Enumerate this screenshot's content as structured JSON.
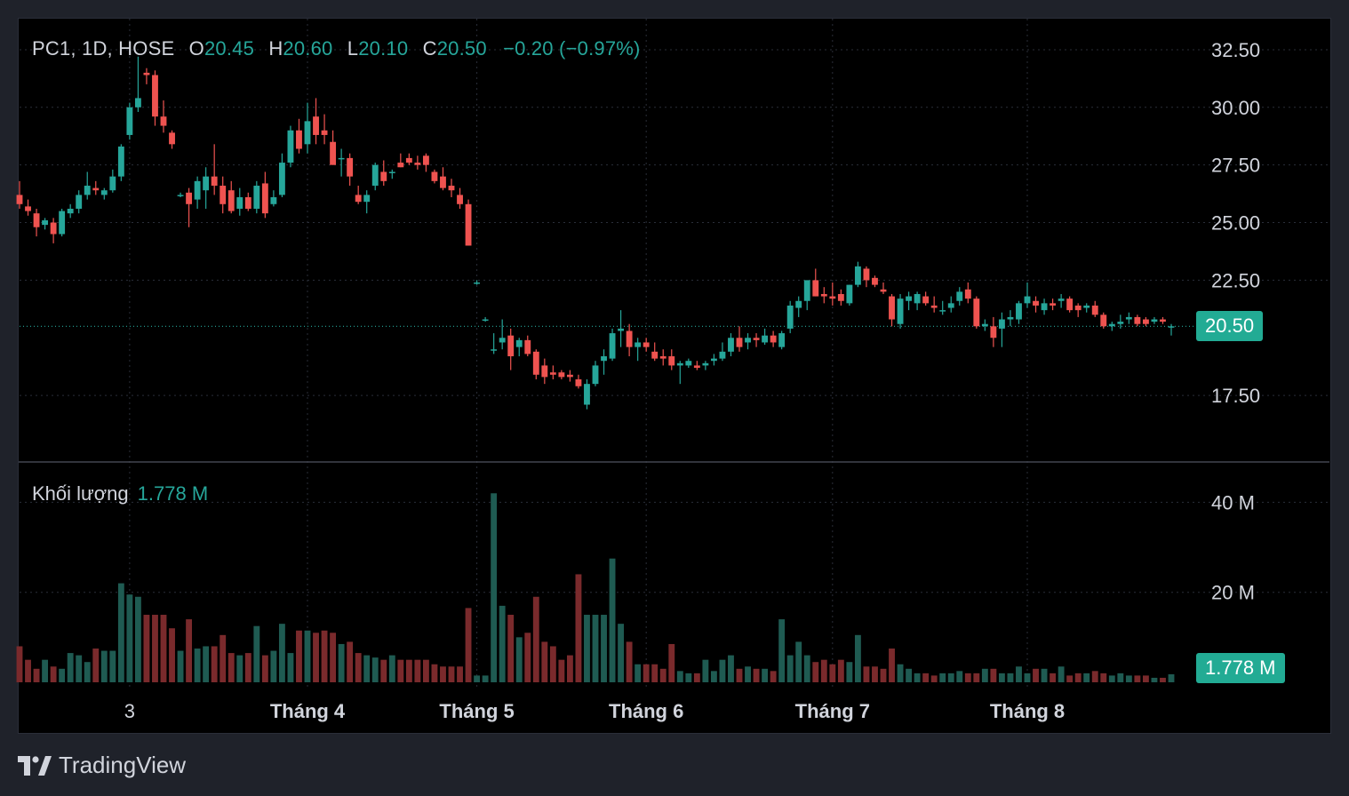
{
  "header": {
    "symbol": "PC1, 1D, HOSE",
    "o_label": "O",
    "o_value": "20.45",
    "h_label": "H",
    "h_value": "20.60",
    "l_label": "L",
    "l_value": "20.10",
    "c_label": "C",
    "c_value": "20.50",
    "change": "−0.20 (−0.97%)"
  },
  "volume_header": {
    "label": "Khối lượng",
    "value": "1.778 M"
  },
  "price_badge": "20.50",
  "volume_badge": "1.778 M",
  "brand": {
    "name": "TradingView"
  },
  "colors": {
    "up": "#26a69a",
    "down": "#ef5350",
    "vol_up": "#1f5b52",
    "vol_down": "#7a2a2c",
    "badge": "#22ab94"
  },
  "chart_data": {
    "type": "candlestick",
    "price_axis": {
      "ticks": [
        "32.50",
        "30.00",
        "27.50",
        "25.00",
        "22.50",
        "17.50"
      ],
      "range": [
        15.0,
        33.5
      ]
    },
    "volume_axis": {
      "ticks": [
        "40 M",
        "20 M"
      ],
      "range": [
        0,
        46
      ]
    },
    "x_ticks": [
      {
        "label": "3",
        "index": 13
      },
      {
        "label": "Tháng 4",
        "index": 34
      },
      {
        "label": "Tháng 5",
        "index": 54
      },
      {
        "label": "Tháng 6",
        "index": 74
      },
      {
        "label": "Tháng 7",
        "index": 96
      },
      {
        "label": "Tháng 8",
        "index": 119
      }
    ],
    "candles": [
      [
        26.2,
        26.8,
        25.6,
        25.8,
        8.0
      ],
      [
        25.7,
        26.0,
        25.3,
        25.5,
        5.0
      ],
      [
        25.4,
        25.6,
        24.4,
        24.8,
        3.0
      ],
      [
        24.9,
        25.2,
        24.7,
        25.1,
        5.0
      ],
      [
        25.0,
        25.2,
        24.1,
        24.5,
        3.5
      ],
      [
        24.5,
        25.6,
        24.4,
        25.5,
        3.0
      ],
      [
        25.4,
        25.8,
        25.2,
        25.6,
        6.5
      ],
      [
        25.6,
        26.4,
        25.4,
        26.2,
        6.0
      ],
      [
        26.2,
        27.2,
        26.0,
        26.6,
        4.5
      ],
      [
        26.5,
        26.8,
        26.2,
        26.4,
        7.5
      ],
      [
        26.2,
        26.5,
        26.0,
        26.4,
        7.0
      ],
      [
        26.4,
        27.3,
        26.3,
        27.0,
        7.0
      ],
      [
        27.0,
        28.4,
        26.8,
        28.3,
        22.0
      ],
      [
        28.8,
        30.2,
        28.6,
        30.0,
        19.5
      ],
      [
        30.0,
        32.2,
        29.8,
        30.4,
        19.0
      ],
      [
        31.5,
        31.7,
        31.0,
        31.4,
        15.0
      ],
      [
        31.4,
        31.6,
        29.2,
        29.6,
        15.0
      ],
      [
        29.6,
        30.3,
        28.9,
        29.2,
        15.0
      ],
      [
        28.9,
        29.0,
        28.2,
        28.4,
        12.0
      ],
      [
        26.2,
        26.3,
        26.1,
        26.2,
        7.0
      ],
      [
        26.3,
        26.5,
        24.8,
        25.8,
        14.0
      ],
      [
        26.0,
        27.0,
        25.6,
        26.8,
        7.5
      ],
      [
        26.4,
        27.4,
        25.6,
        27.0,
        8.0
      ],
      [
        27.0,
        28.4,
        26.2,
        26.6,
        8.0
      ],
      [
        26.6,
        27.0,
        25.4,
        25.8,
        10.5
      ],
      [
        26.4,
        26.8,
        25.4,
        25.5,
        6.5
      ],
      [
        25.6,
        26.5,
        25.3,
        26.1,
        6.0
      ],
      [
        26.1,
        26.3,
        25.5,
        25.6,
        6.5
      ],
      [
        25.6,
        26.8,
        25.4,
        26.6,
        12.5
      ],
      [
        26.7,
        27.2,
        25.2,
        25.4,
        6.0
      ],
      [
        25.8,
        26.4,
        25.7,
        26.1,
        7.0
      ],
      [
        26.2,
        28.0,
        26.1,
        27.6,
        13.0
      ],
      [
        27.6,
        29.2,
        27.4,
        29.0,
        6.5
      ],
      [
        29.0,
        29.5,
        28.0,
        28.2,
        11.5
      ],
      [
        28.4,
        30.2,
        28.0,
        29.4,
        11.5
      ],
      [
        29.6,
        30.4,
        28.4,
        28.8,
        11.0
      ],
      [
        29.0,
        29.7,
        28.4,
        28.8,
        11.5
      ],
      [
        28.5,
        29.0,
        27.5,
        27.5,
        11.0
      ],
      [
        27.8,
        28.2,
        27.0,
        27.8,
        8.5
      ],
      [
        27.8,
        28.0,
        26.6,
        27.0,
        9.0
      ],
      [
        26.2,
        26.6,
        25.8,
        25.9,
        6.5
      ],
      [
        25.9,
        26.4,
        25.4,
        26.2,
        6.0
      ],
      [
        26.6,
        27.6,
        26.4,
        27.5,
        5.5
      ],
      [
        27.2,
        27.7,
        26.6,
        26.8,
        5.0
      ],
      [
        27.2,
        27.3,
        26.9,
        27.2,
        6.0
      ],
      [
        27.6,
        28.0,
        27.4,
        27.4,
        5.0
      ],
      [
        27.8,
        28.0,
        27.5,
        27.6,
        5.0
      ],
      [
        27.6,
        27.9,
        27.3,
        27.5,
        5.0
      ],
      [
        27.9,
        28.0,
        27.2,
        27.5,
        5.0
      ],
      [
        27.2,
        27.3,
        26.7,
        26.8,
        4.0
      ],
      [
        27.0,
        27.4,
        26.4,
        26.5,
        3.5
      ],
      [
        26.6,
        26.9,
        26.1,
        26.4,
        3.5
      ],
      [
        26.2,
        26.5,
        25.6,
        25.8,
        3.5
      ],
      [
        25.8,
        26.0,
        24.0,
        24.0,
        16.5
      ],
      [
        22.4,
        22.5,
        22.3,
        22.4,
        1.5
      ],
      [
        20.8,
        20.9,
        20.7,
        20.8,
        1.5
      ],
      [
        19.5,
        20.2,
        19.3,
        19.5,
        42.0
      ],
      [
        19.8,
        20.8,
        19.5,
        20.0,
        17.0
      ],
      [
        20.1,
        20.4,
        18.6,
        19.2,
        15.0
      ],
      [
        19.6,
        20.0,
        19.2,
        19.9,
        10.0
      ],
      [
        19.9,
        20.1,
        19.2,
        19.3,
        11.0
      ],
      [
        19.4,
        19.5,
        18.2,
        18.4,
        19.0
      ],
      [
        18.8,
        19.1,
        18.0,
        18.3,
        9.0
      ],
      [
        18.5,
        18.8,
        18.2,
        18.4,
        8.0
      ],
      [
        18.5,
        18.6,
        18.2,
        18.3,
        5.0
      ],
      [
        18.4,
        18.6,
        18.1,
        18.3,
        6.0
      ],
      [
        18.2,
        18.4,
        17.8,
        17.9,
        24.0
      ],
      [
        17.1,
        18.2,
        16.9,
        18.0,
        15.0
      ],
      [
        18.0,
        19.0,
        17.9,
        18.8,
        15.0
      ],
      [
        19.0,
        19.5,
        18.4,
        19.2,
        15.0
      ],
      [
        19.1,
        20.4,
        19.0,
        20.2,
        27.5
      ],
      [
        20.3,
        21.2,
        19.6,
        20.4,
        13.0
      ],
      [
        20.3,
        20.6,
        19.2,
        19.6,
        9.0
      ],
      [
        19.6,
        20.0,
        19.0,
        19.8,
        4.0
      ],
      [
        19.8,
        20.0,
        19.4,
        19.6,
        4.0
      ],
      [
        19.4,
        19.8,
        19.0,
        19.1,
        4.0
      ],
      [
        19.2,
        19.5,
        18.8,
        19.1,
        3.0
      ],
      [
        19.2,
        19.5,
        18.6,
        18.8,
        8.5
      ],
      [
        18.8,
        19.0,
        18.0,
        18.9,
        2.5
      ],
      [
        18.8,
        19.1,
        18.7,
        19.0,
        2.0
      ],
      [
        18.8,
        19.0,
        18.6,
        18.7,
        2.0
      ],
      [
        18.8,
        19.0,
        18.6,
        18.9,
        5.0
      ],
      [
        19.0,
        19.3,
        18.8,
        19.1,
        2.5
      ],
      [
        19.1,
        19.8,
        19.0,
        19.4,
        5.0
      ],
      [
        19.4,
        20.2,
        19.2,
        20.0,
        6.0
      ],
      [
        20.0,
        20.5,
        19.4,
        19.6,
        3.0
      ],
      [
        19.8,
        20.2,
        19.5,
        20.0,
        3.5
      ],
      [
        20.0,
        20.2,
        19.6,
        19.9,
        3.0
      ],
      [
        19.8,
        20.4,
        19.7,
        20.1,
        3.0
      ],
      [
        20.1,
        20.3,
        19.6,
        19.8,
        2.5
      ],
      [
        19.6,
        20.3,
        19.5,
        20.2,
        14.0
      ],
      [
        20.4,
        21.6,
        20.2,
        21.4,
        6.0
      ],
      [
        21.3,
        21.8,
        20.9,
        21.6,
        9.0
      ],
      [
        21.6,
        22.5,
        21.2,
        22.5,
        6.0
      ],
      [
        22.5,
        23.0,
        21.8,
        21.8,
        4.5
      ],
      [
        21.9,
        22.2,
        21.5,
        21.8,
        5.0
      ],
      [
        21.8,
        22.4,
        21.4,
        21.7,
        4.0
      ],
      [
        21.9,
        22.1,
        21.4,
        21.6,
        5.0
      ],
      [
        21.5,
        22.3,
        21.4,
        22.3,
        4.5
      ],
      [
        22.3,
        23.3,
        22.2,
        23.1,
        10.5
      ],
      [
        23.0,
        23.1,
        22.2,
        22.5,
        3.5
      ],
      [
        22.6,
        22.7,
        22.2,
        22.3,
        3.5
      ],
      [
        22.1,
        22.4,
        21.9,
        22.0,
        3.0
      ],
      [
        21.8,
        21.9,
        20.5,
        20.8,
        7.5
      ],
      [
        20.6,
        21.9,
        20.4,
        21.7,
        4.0
      ],
      [
        21.6,
        22.0,
        21.2,
        21.8,
        3.0
      ],
      [
        21.5,
        22.0,
        21.2,
        21.9,
        2.0
      ],
      [
        21.8,
        22.0,
        21.4,
        21.5,
        2.0
      ],
      [
        21.4,
        21.8,
        21.1,
        21.3,
        1.5
      ],
      [
        21.2,
        21.6,
        21.0,
        21.2,
        2.0
      ],
      [
        21.3,
        21.8,
        21.1,
        21.5,
        2.0
      ],
      [
        21.6,
        22.2,
        21.4,
        22.0,
        2.5
      ],
      [
        22.1,
        22.4,
        21.5,
        21.7,
        2.0
      ],
      [
        21.7,
        21.8,
        20.4,
        20.5,
        2.0
      ],
      [
        20.5,
        20.8,
        20.3,
        20.6,
        3.0
      ],
      [
        20.5,
        20.9,
        19.6,
        20.0,
        3.0
      ],
      [
        20.4,
        21.1,
        19.6,
        20.8,
        2.0
      ],
      [
        20.8,
        21.2,
        20.5,
        20.9,
        2.0
      ],
      [
        20.8,
        21.6,
        20.6,
        21.5,
        3.5
      ],
      [
        21.5,
        22.4,
        21.3,
        21.8,
        2.0
      ],
      [
        21.6,
        21.8,
        21.1,
        21.4,
        3.0
      ],
      [
        21.2,
        21.7,
        21.0,
        21.5,
        3.0
      ],
      [
        21.5,
        21.7,
        21.2,
        21.4,
        2.0
      ],
      [
        21.6,
        21.9,
        21.3,
        21.7,
        3.5
      ],
      [
        21.7,
        21.8,
        21.1,
        21.2,
        1.5
      ],
      [
        21.4,
        21.5,
        20.9,
        21.2,
        2.0
      ],
      [
        21.3,
        21.5,
        21.1,
        21.4,
        2.0
      ],
      [
        21.4,
        21.6,
        20.9,
        21.0,
        2.5
      ],
      [
        21.0,
        21.1,
        20.4,
        20.5,
        2.0
      ],
      [
        20.5,
        20.7,
        20.3,
        20.6,
        1.5
      ],
      [
        20.6,
        21.0,
        20.4,
        20.7,
        2.0
      ],
      [
        20.8,
        21.1,
        20.6,
        20.9,
        1.5
      ],
      [
        20.9,
        21.0,
        20.5,
        20.6,
        1.5
      ],
      [
        20.8,
        20.9,
        20.5,
        20.6,
        1.5
      ],
      [
        20.7,
        20.9,
        20.6,
        20.8,
        1.0
      ],
      [
        20.8,
        20.9,
        20.6,
        20.7,
        1.0
      ],
      [
        20.45,
        20.6,
        20.1,
        20.5,
        1.778
      ]
    ]
  }
}
